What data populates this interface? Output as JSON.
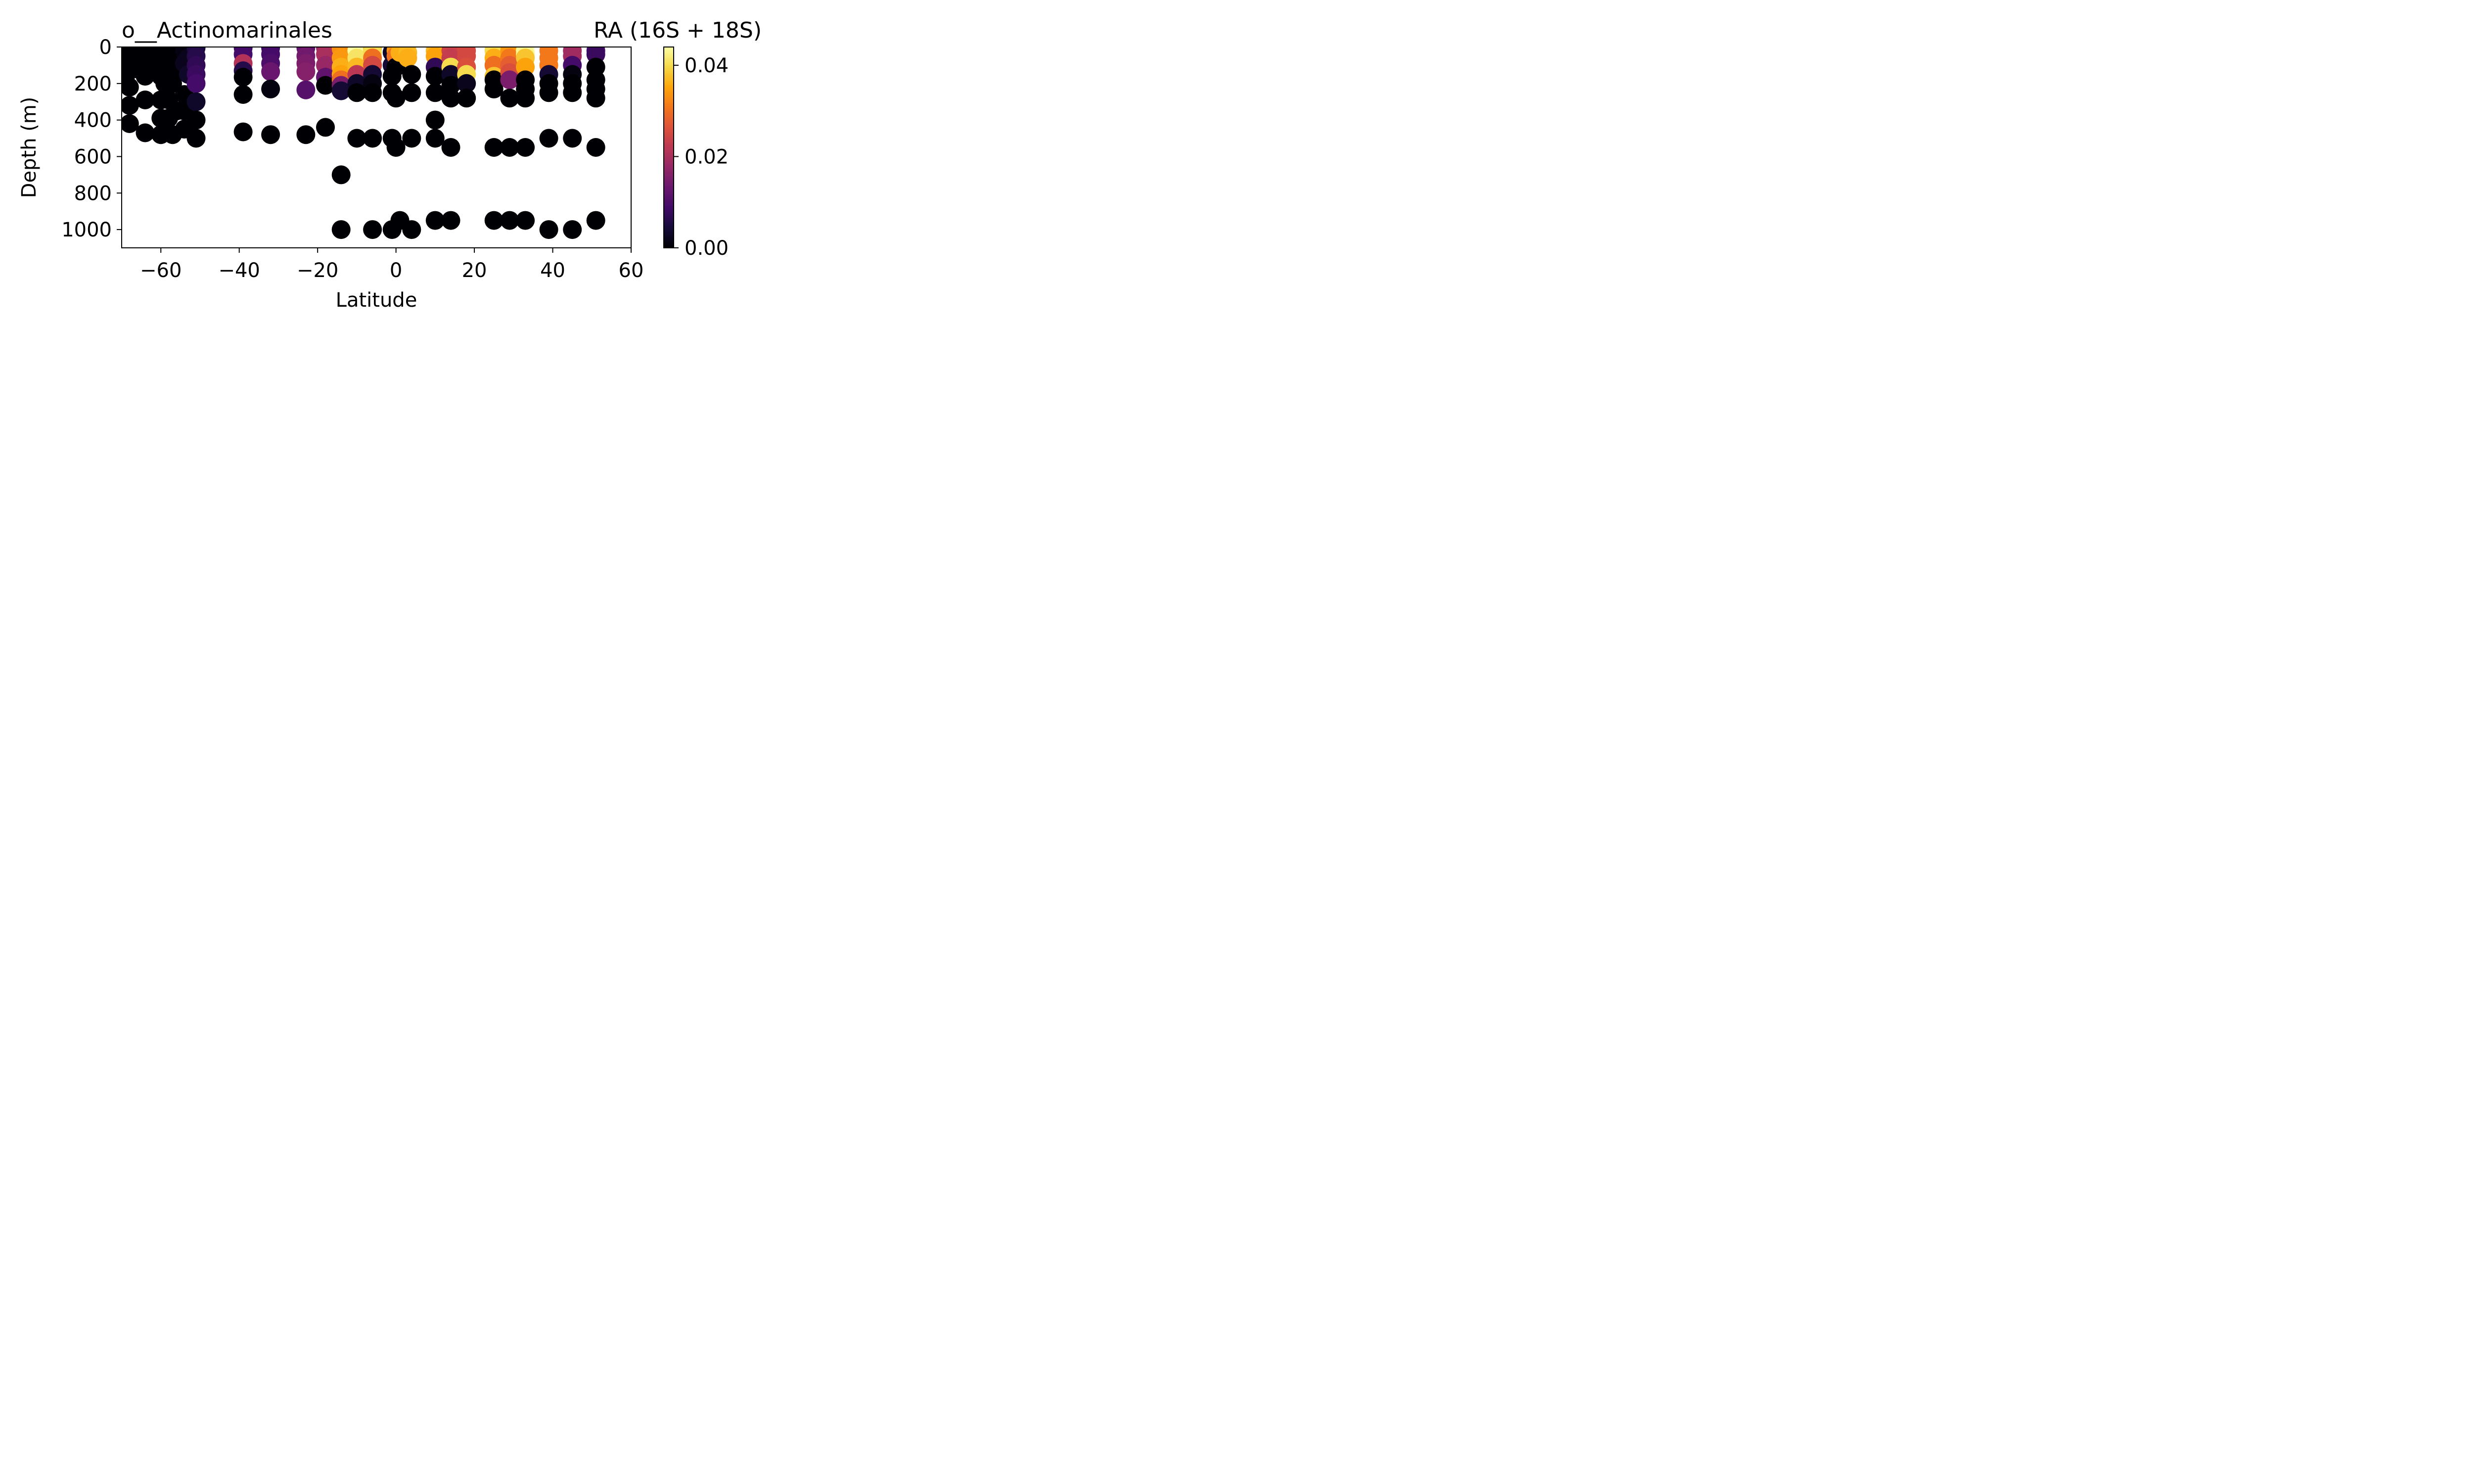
{
  "chart_data": {
    "type": "scatter",
    "title": "o__Actinomarinales",
    "colorbar_title": "RA (16S + 18S)",
    "xlabel": "Latitude",
    "ylabel": "Depth (m)",
    "xlim": [
      -70,
      60
    ],
    "ylim": [
      1100,
      0
    ],
    "y_inverted": true,
    "xticks": [
      -60,
      -40,
      -20,
      0,
      20,
      40,
      60
    ],
    "xtick_labels": [
      "−60",
      "−40",
      "−20",
      "0",
      "20",
      "40",
      "60"
    ],
    "yticks": [
      0,
      200,
      400,
      600,
      800,
      1000
    ],
    "ytick_labels": [
      "0",
      "200",
      "400",
      "600",
      "800",
      "1000"
    ],
    "colormap": "inferno",
    "color_range": [
      0,
      0.044
    ],
    "colorbar_ticks": [
      0.0,
      0.02,
      0.04
    ],
    "colorbar_tick_labels": [
      "0.00",
      "0.02",
      "0.04"
    ],
    "grid": false,
    "legend": "none",
    "points": [
      {
        "x": -69,
        "y": 5,
        "c": 0.0
      },
      {
        "x": -69,
        "y": 40,
        "c": 0.0
      },
      {
        "x": -69,
        "y": 80,
        "c": 0.0
      },
      {
        "x": -69,
        "y": 120,
        "c": 0.0
      },
      {
        "x": -69,
        "y": 160,
        "c": 0.0
      },
      {
        "x": -68,
        "y": 220,
        "c": 0.0
      },
      {
        "x": -68,
        "y": 320,
        "c": 0.0
      },
      {
        "x": -68,
        "y": 420,
        "c": 0.0
      },
      {
        "x": -66,
        "y": 5,
        "c": 0.0
      },
      {
        "x": -66,
        "y": 60,
        "c": 0.0
      },
      {
        "x": -66,
        "y": 120,
        "c": 0.0
      },
      {
        "x": -64,
        "y": 5,
        "c": 0.0
      },
      {
        "x": -64,
        "y": 50,
        "c": 0.0
      },
      {
        "x": -64,
        "y": 100,
        "c": 0.0
      },
      {
        "x": -64,
        "y": 160,
        "c": 0.0
      },
      {
        "x": -64,
        "y": 290,
        "c": 0.0
      },
      {
        "x": -64,
        "y": 470,
        "c": 0.0
      },
      {
        "x": -62,
        "y": 5,
        "c": 0.0
      },
      {
        "x": -62,
        "y": 60,
        "c": 0.0
      },
      {
        "x": -62,
        "y": 130,
        "c": 0.0
      },
      {
        "x": -60,
        "y": 5,
        "c": 0.0
      },
      {
        "x": -60,
        "y": 50,
        "c": 0.0
      },
      {
        "x": -60,
        "y": 100,
        "c": 0.0
      },
      {
        "x": -60,
        "y": 160,
        "c": 0.0
      },
      {
        "x": -60,
        "y": 290,
        "c": 0.0
      },
      {
        "x": -60,
        "y": 390,
        "c": 0.0
      },
      {
        "x": -60,
        "y": 480,
        "c": 0.0
      },
      {
        "x": -59,
        "y": 200,
        "c": 0.0
      },
      {
        "x": -58,
        "y": 5,
        "c": 0.0
      },
      {
        "x": -58,
        "y": 60,
        "c": 0.0
      },
      {
        "x": -58,
        "y": 130,
        "c": 0.0
      },
      {
        "x": -58,
        "y": 290,
        "c": 0.0
      },
      {
        "x": -58,
        "y": 390,
        "c": 0.0
      },
      {
        "x": -57,
        "y": 200,
        "c": 0.0
      },
      {
        "x": -57,
        "y": 480,
        "c": 0.0
      },
      {
        "x": -56,
        "y": 60,
        "c": 0.0
      },
      {
        "x": -56,
        "y": 130,
        "c": 0.0
      },
      {
        "x": -56,
        "y": 350,
        "c": 0.0
      },
      {
        "x": -54,
        "y": 20,
        "c": 0.001
      },
      {
        "x": -54,
        "y": 90,
        "c": 0.002
      },
      {
        "x": -54,
        "y": 260,
        "c": 0.0
      },
      {
        "x": -54,
        "y": 350,
        "c": 0.0
      },
      {
        "x": -54,
        "y": 450,
        "c": 0.0
      },
      {
        "x": -53,
        "y": 5,
        "c": 0.001
      },
      {
        "x": -53,
        "y": 60,
        "c": 0.002
      },
      {
        "x": -53,
        "y": 100,
        "c": 0.002
      },
      {
        "x": -53,
        "y": 150,
        "c": 0.003
      },
      {
        "x": -51,
        "y": 5,
        "c": 0.005
      },
      {
        "x": -51,
        "y": 50,
        "c": 0.006
      },
      {
        "x": -51,
        "y": 100,
        "c": 0.007
      },
      {
        "x": -51,
        "y": 150,
        "c": 0.008
      },
      {
        "x": -51,
        "y": 200,
        "c": 0.009
      },
      {
        "x": -51,
        "y": 300,
        "c": 0.003
      },
      {
        "x": -51,
        "y": 400,
        "c": 0.0
      },
      {
        "x": -51,
        "y": 500,
        "c": 0.0
      },
      {
        "x": -39,
        "y": 5,
        "c": 0.008
      },
      {
        "x": -39,
        "y": 40,
        "c": 0.009
      },
      {
        "x": -39,
        "y": 90,
        "c": 0.021
      },
      {
        "x": -39,
        "y": 130,
        "c": 0.006
      },
      {
        "x": -39,
        "y": 165,
        "c": 0.0
      },
      {
        "x": -39,
        "y": 260,
        "c": 0.0
      },
      {
        "x": -39,
        "y": 465,
        "c": 0.0
      },
      {
        "x": -32,
        "y": 5,
        "c": 0.008
      },
      {
        "x": -32,
        "y": 40,
        "c": 0.009
      },
      {
        "x": -32,
        "y": 90,
        "c": 0.01
      },
      {
        "x": -32,
        "y": 135,
        "c": 0.013
      },
      {
        "x": -32,
        "y": 230,
        "c": 0.001
      },
      {
        "x": -32,
        "y": 480,
        "c": 0.0
      },
      {
        "x": -23,
        "y": 5,
        "c": 0.012
      },
      {
        "x": -23,
        "y": 50,
        "c": 0.014
      },
      {
        "x": -23,
        "y": 90,
        "c": 0.015
      },
      {
        "x": -23,
        "y": 135,
        "c": 0.016
      },
      {
        "x": -23,
        "y": 235,
        "c": 0.011
      },
      {
        "x": -23,
        "y": 480,
        "c": 0.0
      },
      {
        "x": -18,
        "y": 5,
        "c": 0.018
      },
      {
        "x": -18,
        "y": 40,
        "c": 0.02
      },
      {
        "x": -18,
        "y": 100,
        "c": 0.018
      },
      {
        "x": -18,
        "y": 165,
        "c": 0.012
      },
      {
        "x": -18,
        "y": 210,
        "c": 0.0
      },
      {
        "x": -18,
        "y": 440,
        "c": 0.0
      },
      {
        "x": -14,
        "y": 10,
        "c": 0.033
      },
      {
        "x": -14,
        "y": 60,
        "c": 0.034
      },
      {
        "x": -14,
        "y": 110,
        "c": 0.036
      },
      {
        "x": -14,
        "y": 150,
        "c": 0.035
      },
      {
        "x": -14,
        "y": 180,
        "c": 0.03
      },
      {
        "x": -14,
        "y": 210,
        "c": 0.015
      },
      {
        "x": -14,
        "y": 240,
        "c": 0.004
      },
      {
        "x": -14,
        "y": 700,
        "c": 0.0
      },
      {
        "x": -14,
        "y": 1000,
        "c": 0.0
      },
      {
        "x": -10,
        "y": 20,
        "c": 0.044
      },
      {
        "x": -10,
        "y": 60,
        "c": 0.041
      },
      {
        "x": -10,
        "y": 110,
        "c": 0.037
      },
      {
        "x": -10,
        "y": 150,
        "c": 0.022
      },
      {
        "x": -10,
        "y": 200,
        "c": 0.003
      },
      {
        "x": -10,
        "y": 250,
        "c": 0.0
      },
      {
        "x": -10,
        "y": 500,
        "c": 0.0
      },
      {
        "x": -6,
        "y": 10,
        "c": 0.038
      },
      {
        "x": -6,
        "y": 30,
        "c": 0.04
      },
      {
        "x": -6,
        "y": 60,
        "c": 0.03
      },
      {
        "x": -6,
        "y": 100,
        "c": 0.025
      },
      {
        "x": -6,
        "y": 150,
        "c": 0.004
      },
      {
        "x": -6,
        "y": 200,
        "c": 0.001
      },
      {
        "x": -6,
        "y": 250,
        "c": 0.0
      },
      {
        "x": -6,
        "y": 500,
        "c": 0.0
      },
      {
        "x": -6,
        "y": 1000,
        "c": 0.0
      },
      {
        "x": -1,
        "y": 30,
        "c": 0.003
      },
      {
        "x": -1,
        "y": 100,
        "c": 0.004
      },
      {
        "x": -1,
        "y": 160,
        "c": 0.0
      },
      {
        "x": -1,
        "y": 250,
        "c": 0.0
      },
      {
        "x": -1,
        "y": 500,
        "c": 0.0
      },
      {
        "x": -1,
        "y": 1000,
        "c": 0.0
      },
      {
        "x": 0,
        "y": 20,
        "c": 0.034
      },
      {
        "x": 0,
        "y": 50,
        "c": 0.03
      },
      {
        "x": 0,
        "y": 110,
        "c": 0.0
      },
      {
        "x": 0,
        "y": 280,
        "c": 0.0
      },
      {
        "x": 0,
        "y": 550,
        "c": 0.0
      },
      {
        "x": 1,
        "y": 30,
        "c": 0.036
      },
      {
        "x": 1,
        "y": 950,
        "c": 0.0
      },
      {
        "x": 3,
        "y": 30,
        "c": 0.037
      },
      {
        "x": 3,
        "y": 60,
        "c": 0.036
      },
      {
        "x": 4,
        "y": 150,
        "c": 0.0
      },
      {
        "x": 4,
        "y": 250,
        "c": 0.0
      },
      {
        "x": 4,
        "y": 500,
        "c": 0.0
      },
      {
        "x": 4,
        "y": 1000,
        "c": 0.0
      },
      {
        "x": 10,
        "y": 20,
        "c": 0.037
      },
      {
        "x": 10,
        "y": 50,
        "c": 0.035
      },
      {
        "x": 10,
        "y": 110,
        "c": 0.007
      },
      {
        "x": 10,
        "y": 160,
        "c": 0.0
      },
      {
        "x": 10,
        "y": 250,
        "c": 0.0
      },
      {
        "x": 10,
        "y": 400,
        "c": 0.0
      },
      {
        "x": 10,
        "y": 500,
        "c": 0.0
      },
      {
        "x": 10,
        "y": 950,
        "c": 0.0
      },
      {
        "x": 14,
        "y": 20,
        "c": 0.024
      },
      {
        "x": 14,
        "y": 60,
        "c": 0.023
      },
      {
        "x": 14,
        "y": 110,
        "c": 0.04
      },
      {
        "x": 14,
        "y": 150,
        "c": 0.003
      },
      {
        "x": 14,
        "y": 210,
        "c": 0.0
      },
      {
        "x": 14,
        "y": 280,
        "c": 0.0
      },
      {
        "x": 14,
        "y": 550,
        "c": 0.0
      },
      {
        "x": 14,
        "y": 950,
        "c": 0.0
      },
      {
        "x": 18,
        "y": 20,
        "c": 0.025
      },
      {
        "x": 18,
        "y": 50,
        "c": 0.025
      },
      {
        "x": 18,
        "y": 110,
        "c": 0.026
      },
      {
        "x": 18,
        "y": 150,
        "c": 0.04
      },
      {
        "x": 18,
        "y": 200,
        "c": 0.002
      },
      {
        "x": 18,
        "y": 280,
        "c": 0.0
      },
      {
        "x": 25,
        "y": 20,
        "c": 0.04
      },
      {
        "x": 25,
        "y": 60,
        "c": 0.036
      },
      {
        "x": 25,
        "y": 100,
        "c": 0.03
      },
      {
        "x": 25,
        "y": 160,
        "c": 0.038
      },
      {
        "x": 25,
        "y": 180,
        "c": 0.0
      },
      {
        "x": 25,
        "y": 230,
        "c": 0.0
      },
      {
        "x": 25,
        "y": 550,
        "c": 0.0
      },
      {
        "x": 25,
        "y": 950,
        "c": 0.0
      },
      {
        "x": 29,
        "y": 20,
        "c": 0.034
      },
      {
        "x": 29,
        "y": 60,
        "c": 0.031
      },
      {
        "x": 29,
        "y": 100,
        "c": 0.028
      },
      {
        "x": 29,
        "y": 140,
        "c": 0.026
      },
      {
        "x": 29,
        "y": 180,
        "c": 0.015
      },
      {
        "x": 29,
        "y": 280,
        "c": 0.0
      },
      {
        "x": 29,
        "y": 550,
        "c": 0.0
      },
      {
        "x": 29,
        "y": 950,
        "c": 0.0
      },
      {
        "x": 33,
        "y": 20,
        "c": 0.044
      },
      {
        "x": 33,
        "y": 40,
        "c": 0.043
      },
      {
        "x": 33,
        "y": 60,
        "c": 0.038
      },
      {
        "x": 33,
        "y": 110,
        "c": 0.035
      },
      {
        "x": 33,
        "y": 180,
        "c": 0.0
      },
      {
        "x": 33,
        "y": 230,
        "c": 0.0
      },
      {
        "x": 33,
        "y": 280,
        "c": 0.0
      },
      {
        "x": 33,
        "y": 550,
        "c": 0.0
      },
      {
        "x": 33,
        "y": 950,
        "c": 0.0
      },
      {
        "x": 39,
        "y": 20,
        "c": 0.031
      },
      {
        "x": 39,
        "y": 60,
        "c": 0.031
      },
      {
        "x": 39,
        "y": 100,
        "c": 0.031
      },
      {
        "x": 39,
        "y": 150,
        "c": 0.004
      },
      {
        "x": 39,
        "y": 200,
        "c": 0.0
      },
      {
        "x": 39,
        "y": 250,
        "c": 0.0
      },
      {
        "x": 39,
        "y": 500,
        "c": 0.0
      },
      {
        "x": 39,
        "y": 1000,
        "c": 0.0
      },
      {
        "x": 45,
        "y": 20,
        "c": 0.019
      },
      {
        "x": 45,
        "y": 50,
        "c": 0.019
      },
      {
        "x": 45,
        "y": 100,
        "c": 0.009
      },
      {
        "x": 45,
        "y": 150,
        "c": 0.001
      },
      {
        "x": 45,
        "y": 200,
        "c": 0.0
      },
      {
        "x": 45,
        "y": 250,
        "c": 0.0
      },
      {
        "x": 45,
        "y": 500,
        "c": 0.0
      },
      {
        "x": 45,
        "y": 1000,
        "c": 0.0
      },
      {
        "x": 51,
        "y": 20,
        "c": 0.009
      },
      {
        "x": 51,
        "y": 40,
        "c": 0.008
      },
      {
        "x": 51,
        "y": 110,
        "c": 0.0
      },
      {
        "x": 51,
        "y": 180,
        "c": 0.0
      },
      {
        "x": 51,
        "y": 230,
        "c": 0.0
      },
      {
        "x": 51,
        "y": 280,
        "c": 0.0
      },
      {
        "x": 51,
        "y": 550,
        "c": 0.0
      },
      {
        "x": 51,
        "y": 950,
        "c": 0.0
      }
    ]
  }
}
